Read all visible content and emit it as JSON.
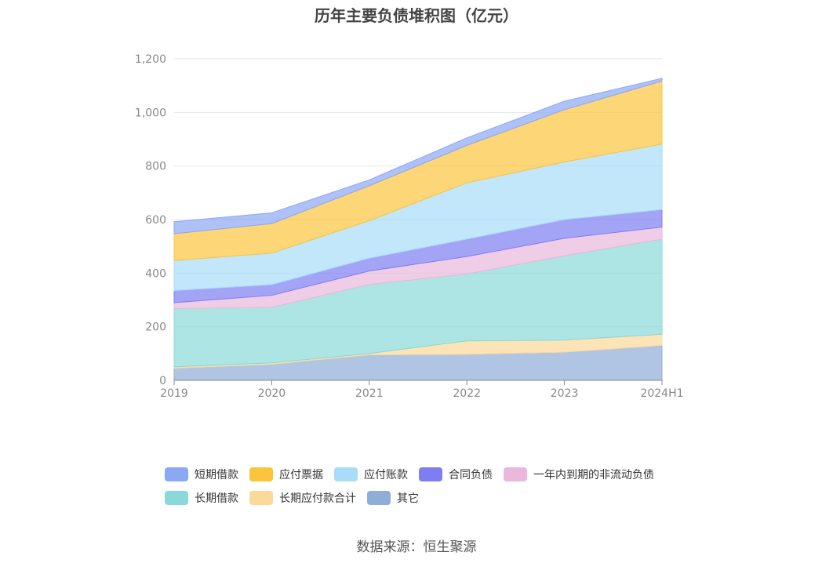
{
  "chart_data": {
    "type": "area",
    "stacked": true,
    "title": "历年主要负债堆积图（亿元）",
    "x": [
      "2019",
      "2020",
      "2021",
      "2022",
      "2023",
      "2024H1"
    ],
    "ylim": [
      0,
      1200
    ],
    "yticks": [
      "0",
      "200",
      "400",
      "600",
      "800",
      "1,000",
      "1,200"
    ],
    "grid": true,
    "legend_position": "bottom",
    "series": [
      {
        "name": "其它",
        "color": "#8fadd9",
        "values": [
          45,
          60,
          95,
          97,
          105,
          130
        ]
      },
      {
        "name": "长期应付款合计",
        "color": "#fcd999",
        "values": [
          5,
          5,
          5,
          50,
          45,
          42
        ]
      },
      {
        "name": "长期借款",
        "color": "#8ad8d8",
        "values": [
          218,
          207,
          258,
          250,
          315,
          355
        ]
      },
      {
        "name": "一年内到期的非流动负债",
        "color": "#e9b8dc",
        "values": [
          22,
          45,
          50,
          65,
          65,
          45
        ]
      },
      {
        "name": "合同负债",
        "color": "#7e7ef2",
        "values": [
          45,
          40,
          48,
          65,
          70,
          65
        ]
      },
      {
        "name": "应付账款",
        "color": "#a8dcf8",
        "values": [
          112,
          118,
          140,
          210,
          215,
          245
        ]
      },
      {
        "name": "应付票据",
        "color": "#fcc43d",
        "values": [
          100,
          110,
          130,
          140,
          195,
          235
        ]
      },
      {
        "name": "短期借款",
        "color": "#8ca8f5",
        "values": [
          45,
          40,
          22,
          28,
          32,
          10
        ]
      }
    ]
  },
  "legend_rows": [
    [
      {
        "label": "短期借款",
        "color": "#8ca8f5"
      },
      {
        "label": "应付票据",
        "color": "#fcc43d"
      },
      {
        "label": "应付账款",
        "color": "#a8dcf8"
      },
      {
        "label": "合同负债",
        "color": "#7e7ef2"
      },
      {
        "label": "一年内到期的非流动负债",
        "color": "#e9b8dc"
      }
    ],
    [
      {
        "label": "长期借款",
        "color": "#8ad8d8"
      },
      {
        "label": "长期应付款合计",
        "color": "#fcd999"
      },
      {
        "label": "其它",
        "color": "#8fadd9"
      }
    ]
  ],
  "source": "数据来源：恒生聚源"
}
